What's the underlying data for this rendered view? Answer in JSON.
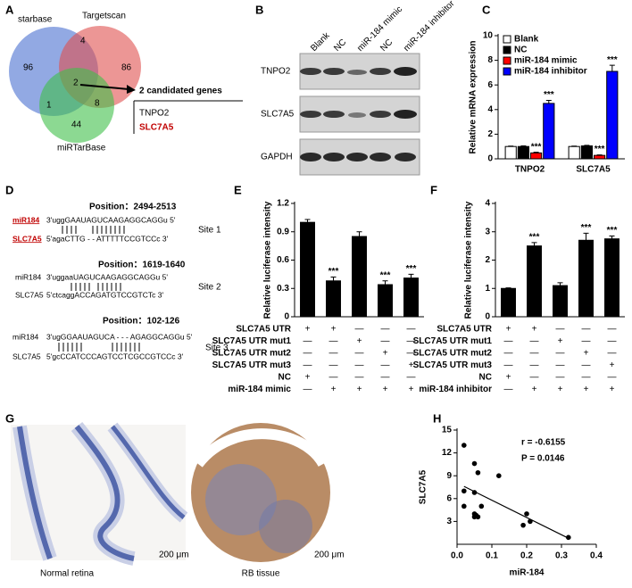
{
  "panels": {
    "A": {
      "label": "A",
      "sets": [
        "starbase",
        "Targetscan",
        "miRTarBase"
      ],
      "counts": [
        96,
        4,
        86,
        2,
        1,
        8,
        44
      ],
      "arrow_text": "2 candidated genes",
      "genes": [
        "TNPO2",
        "SLC7A5"
      ]
    },
    "B": {
      "label": "B",
      "lanes": [
        "Blank",
        "NC",
        "miR-184 mimic",
        "NC",
        "miR-184 inhibitor"
      ],
      "rows": [
        "TNPO2",
        "SLC7A5",
        "GAPDH"
      ]
    },
    "D": {
      "label": "D",
      "sites": [
        {
          "position": "Position：2494-2513",
          "mir": "miR184",
          "mir_seq": "3'uggGAAUAGUCAAGAGGCAGGu 5'",
          "gene": "SLC7A5",
          "gene_seq": "5'agaCTTG - - ATTTTTCCGTCCc 3'",
          "site": "Site 1"
        },
        {
          "position": "Position：1619-1640",
          "mir": "miR184",
          "mir_seq": "3'uggaaUAGUCAAGAGGCAGGu 5'",
          "gene": "SLC7A5",
          "gene_seq": "5'ctcaggACCAGATGTCCGTCTc 3'",
          "site": "Site 2"
        },
        {
          "position": "Position：102-126",
          "mir": "miR184",
          "mir_seq": "3'ugGGAAUAGUCA - - - AGAGGCAGGu 5'",
          "gene": "SLC7A5",
          "gene_seq": "5'gcCCATCCCAGTCCTCGCCGTCCc 3'",
          "site": "Site 3"
        }
      ]
    },
    "G": {
      "label": "G",
      "captions": [
        "Normal retina",
        "RB tissue"
      ],
      "scale_bars": [
        "200 μm",
        "200 μm"
      ]
    }
  },
  "chart_data": [
    {
      "type": "bar",
      "panel": "C",
      "ylabel": "Relative mRNA expression",
      "categories": [
        "TNPO2",
        "SLC7A5"
      ],
      "ylim": [
        0,
        10
      ],
      "yticks": [
        0,
        2,
        4,
        6,
        8,
        10
      ],
      "legend": "top-left",
      "series": [
        {
          "name": "Blank",
          "color": "#ffffff",
          "values": [
            1,
            1
          ],
          "errors": [
            0.03,
            0.03
          ]
        },
        {
          "name": "NC",
          "color": "#000000",
          "values": [
            1,
            1.05
          ],
          "errors": [
            0.05,
            0.05
          ]
        },
        {
          "name": "miR-184 mimic",
          "color": "#ff0000",
          "values": [
            0.48,
            0.28
          ],
          "errors": [
            0.05,
            0.04
          ],
          "sig": [
            "***",
            "***"
          ]
        },
        {
          "name": "miR-184 inhibitor",
          "color": "#0000ff",
          "values": [
            4.5,
            7.1
          ],
          "errors": [
            0.25,
            0.5
          ],
          "sig": [
            "***",
            "***"
          ]
        }
      ]
    },
    {
      "type": "bar",
      "panel": "E",
      "ylabel": "Relative luciferase intensity",
      "categories": [
        null,
        null,
        null,
        null,
        null
      ],
      "values": [
        1,
        0.38,
        0.85,
        0.34,
        0.41
      ],
      "errors": [
        0.03,
        0.04,
        0.05,
        0.04,
        0.04
      ],
      "sig": [
        null,
        "***",
        null,
        "***",
        "***"
      ],
      "color": "#000000",
      "ylim": [
        0,
        1.2
      ],
      "yticks": [
        0,
        0.3,
        0.6,
        0.9,
        1.2
      ],
      "conditions": [
        {
          "name": "SLC7A5 UTR",
          "marks": [
            "+",
            "+",
            "—",
            "—",
            "—"
          ]
        },
        {
          "name": "SLC7A5 UTR mut1",
          "marks": [
            "—",
            "—",
            "+",
            "—",
            "—"
          ]
        },
        {
          "name": "SLC7A5 UTR mut2",
          "marks": [
            "—",
            "—",
            "—",
            "+",
            "—"
          ]
        },
        {
          "name": "SLC7A5 UTR mut3",
          "marks": [
            "—",
            "—",
            "—",
            "—",
            "+"
          ]
        },
        {
          "name": "NC",
          "marks": [
            "+",
            "—",
            "—",
            "—",
            "—"
          ]
        },
        {
          "name": "miR-184 mimic",
          "marks": [
            "—",
            "+",
            "+",
            "+",
            "+"
          ]
        }
      ]
    },
    {
      "type": "bar",
      "panel": "F",
      "ylabel": "Relative luciferase intensity",
      "categories": [
        null,
        null,
        null,
        null,
        null
      ],
      "values": [
        1,
        2.5,
        1.1,
        2.7,
        2.75
      ],
      "errors": [
        0.02,
        0.12,
        0.1,
        0.25,
        0.1
      ],
      "sig": [
        null,
        "***",
        null,
        "***",
        "***"
      ],
      "color": "#000000",
      "ylim": [
        0,
        4
      ],
      "yticks": [
        0,
        1,
        2,
        3,
        4
      ],
      "conditions": [
        {
          "name": "SLC7A5 UTR",
          "marks": [
            "+",
            "+",
            "—",
            "—",
            "—"
          ]
        },
        {
          "name": "SLC7A5 UTR mut1",
          "marks": [
            "—",
            "—",
            "+",
            "—",
            "—"
          ]
        },
        {
          "name": "SLC7A5 UTR mut2",
          "marks": [
            "—",
            "—",
            "—",
            "+",
            "—"
          ]
        },
        {
          "name": "SLC7A5 UTR mut3",
          "marks": [
            "—",
            "—",
            "—",
            "—",
            "+"
          ]
        },
        {
          "name": "NC",
          "marks": [
            "+",
            "—",
            "—",
            "—",
            "—"
          ]
        },
        {
          "name": "miR-184 inhibitor",
          "marks": [
            "—",
            "+",
            "+",
            "+",
            "+"
          ]
        }
      ]
    },
    {
      "type": "scatter",
      "panel": "H",
      "xlabel": "miR-184",
      "ylabel": "SLC7A5",
      "color": "#000000",
      "x": [
        0.02,
        0.05,
        0.06,
        0.12,
        0.02,
        0.05,
        0.02,
        0.07,
        0.05,
        0.06,
        0.055,
        0.05,
        0.2,
        0.21,
        0.19,
        0.32
      ],
      "y": [
        13,
        10.6,
        9.4,
        9,
        7,
        6.8,
        5,
        5,
        4,
        3.6,
        3.8,
        3.6,
        4,
        3,
        2.5,
        0.9
      ],
      "xlim": [
        0,
        0.4
      ],
      "ylim": [
        0,
        15
      ],
      "xticks": [
        {
          "value": 0,
          "label": "0.0"
        },
        0.1,
        0.2,
        0.3,
        0.4
      ],
      "yticks": [
        3,
        6,
        9,
        12,
        15
      ],
      "stats": [
        "r = -0.6155",
        "P = 0.0146"
      ],
      "fit": {
        "x": [
          0.02,
          0.32
        ],
        "y": [
          7.6,
          0.8
        ]
      }
    }
  ]
}
